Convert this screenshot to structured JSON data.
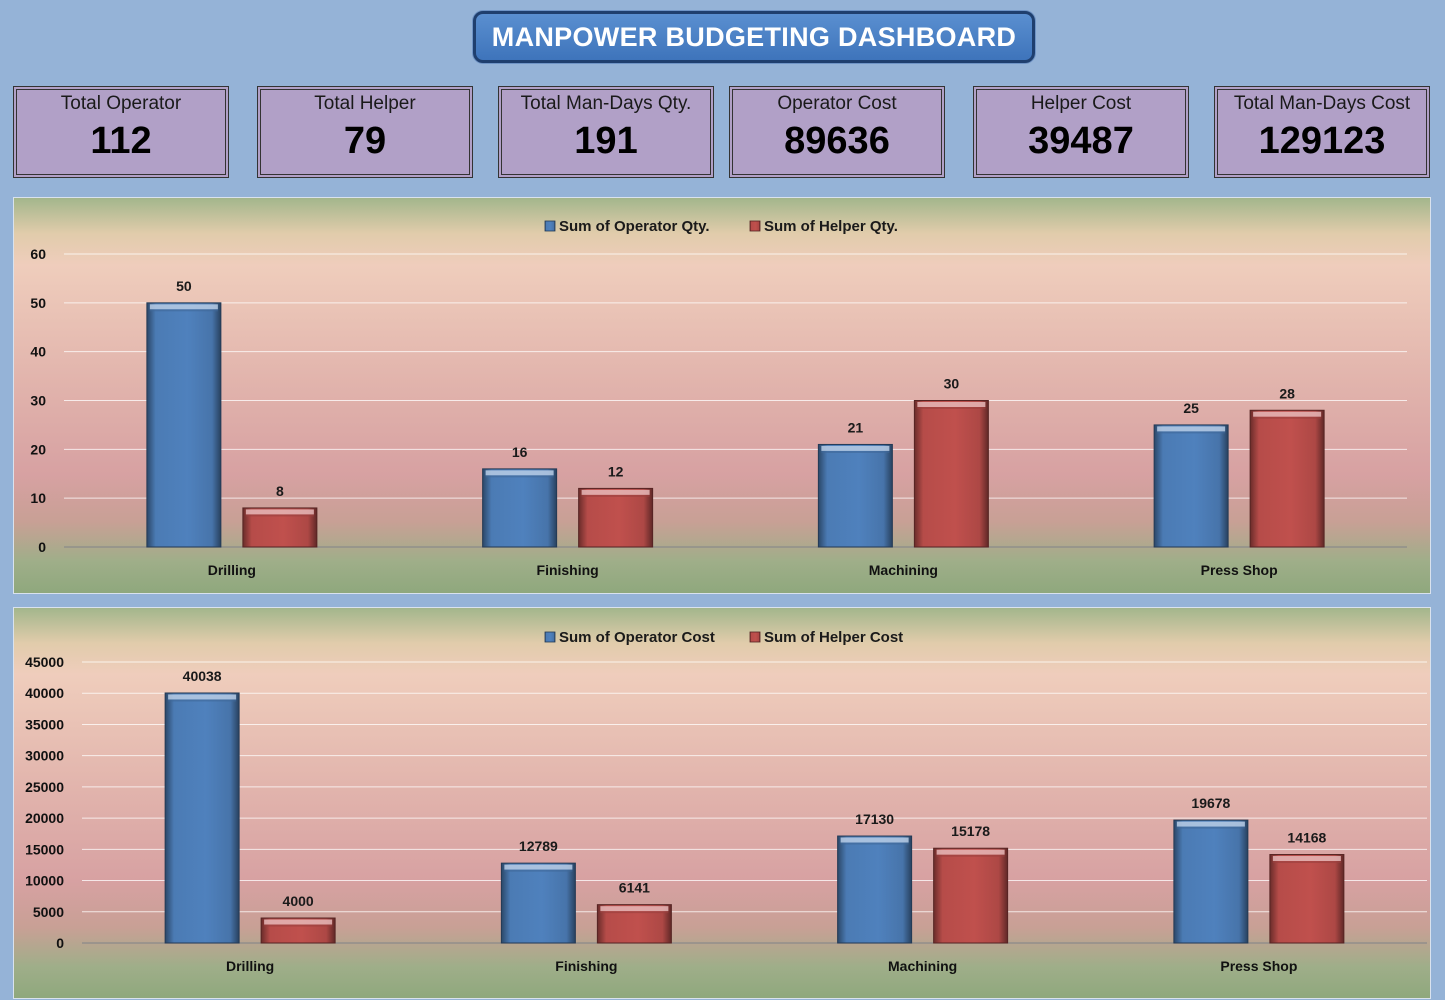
{
  "header": {
    "title": "MANPOWER BUDGETING DASHBOARD"
  },
  "kpis": [
    {
      "label": "Total Operator",
      "value": "112"
    },
    {
      "label": "Total Helper",
      "value": "79"
    },
    {
      "label": "Total Man-Days Qty.",
      "value": "191"
    },
    {
      "label": "Operator Cost",
      "value": "89636"
    },
    {
      "label": "Helper Cost",
      "value": "39487"
    },
    {
      "label": "Total Man-Days Cost",
      "value": "129123"
    }
  ],
  "colors": {
    "operator": "#4f81bd",
    "helper": "#c0504d",
    "page_bg": "#95b3d7",
    "kpi_bg": "#b1a0c7",
    "title_bg": "#4a80c4"
  },
  "chart_data": [
    {
      "type": "bar",
      "title": "",
      "categories": [
        "Drilling",
        "Finishing",
        "Machining",
        "Press Shop"
      ],
      "series": [
        {
          "name": "Sum of Operator Qty.",
          "values": [
            50,
            16,
            21,
            25
          ]
        },
        {
          "name": "Sum of Helper Qty.",
          "values": [
            8,
            12,
            30,
            28
          ]
        }
      ],
      "ylim": [
        0,
        60
      ],
      "yticks": [
        0,
        10,
        20,
        30,
        40,
        50,
        60
      ],
      "legend": "top-center",
      "grid": true
    },
    {
      "type": "bar",
      "title": "",
      "categories": [
        "Drilling",
        "Finishing",
        "Machining",
        "Press Shop"
      ],
      "series": [
        {
          "name": "Sum of Operator Cost",
          "values": [
            40038,
            12789,
            17130,
            19678
          ]
        },
        {
          "name": "Sum of Helper Cost",
          "values": [
            4000,
            6141,
            15178,
            14168
          ]
        }
      ],
      "ylim": [
        0,
        45000
      ],
      "yticks": [
        0,
        5000,
        10000,
        15000,
        20000,
        25000,
        30000,
        35000,
        40000,
        45000
      ],
      "legend": "top-center",
      "grid": true
    }
  ]
}
